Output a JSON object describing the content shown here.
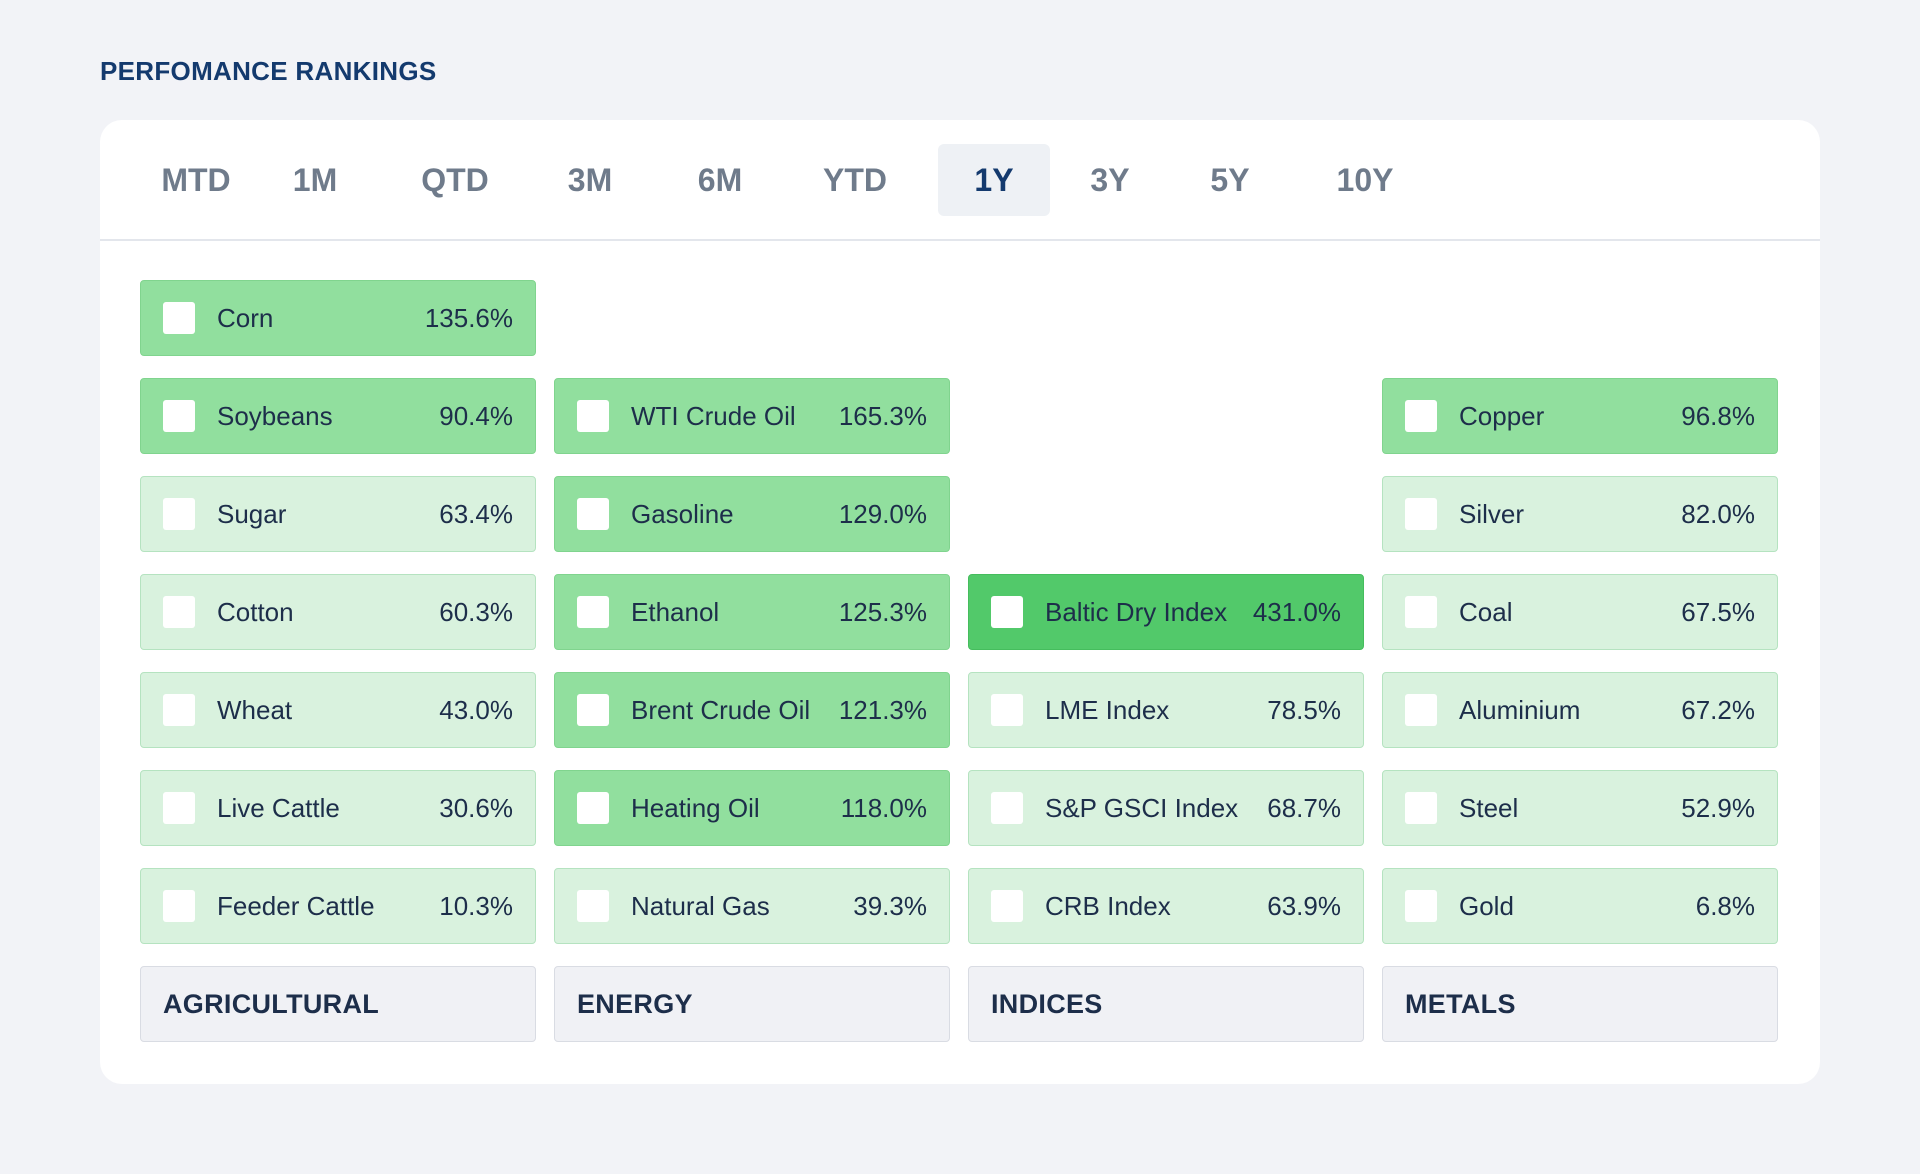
{
  "page_title": "PERFOMANCE RANKINGS",
  "tabs": [
    {
      "label": "MTD",
      "active": false
    },
    {
      "label": "1M",
      "active": false
    },
    {
      "label": "QTD",
      "active": false
    },
    {
      "label": "3M",
      "active": false
    },
    {
      "label": "6M",
      "active": false
    },
    {
      "label": "YTD",
      "active": false
    },
    {
      "label": "1Y",
      "active": true
    },
    {
      "label": "3Y",
      "active": false
    },
    {
      "label": "5Y",
      "active": false
    },
    {
      "label": "10Y",
      "active": false
    }
  ],
  "columns": [
    {
      "category": "AGRICULTURAL",
      "items": [
        {
          "name": "Corn",
          "value": "135.6%"
        },
        {
          "name": "Soybeans",
          "value": "90.4%"
        },
        {
          "name": "Sugar",
          "value": "63.4%"
        },
        {
          "name": "Cotton",
          "value": "60.3%"
        },
        {
          "name": "Wheat",
          "value": "43.0%"
        },
        {
          "name": "Live Cattle",
          "value": "30.6%"
        },
        {
          "name": "Feeder Cattle",
          "value": "10.3%"
        }
      ]
    },
    {
      "category": "ENERGY",
      "items": [
        {
          "name": "WTI Crude Oil",
          "value": "165.3%"
        },
        {
          "name": "Gasoline",
          "value": "129.0%"
        },
        {
          "name": "Ethanol",
          "value": "125.3%"
        },
        {
          "name": "Brent Crude Oil",
          "value": "121.3%"
        },
        {
          "name": "Heating Oil",
          "value": "118.0%"
        },
        {
          "name": "Natural Gas",
          "value": "39.3%"
        }
      ]
    },
    {
      "category": "INDICES",
      "items": [
        {
          "name": "Baltic Dry Index",
          "value": "431.0%"
        },
        {
          "name": "LME Index",
          "value": "78.5%"
        },
        {
          "name": "S&P GSCI Index",
          "value": "68.7%"
        },
        {
          "name": "CRB Index",
          "value": "63.9%"
        }
      ]
    },
    {
      "category": "METALS",
      "items": [
        {
          "name": "Copper",
          "value": "96.8%"
        },
        {
          "name": "Silver",
          "value": "82.0%"
        },
        {
          "name": "Coal",
          "value": "67.5%"
        },
        {
          "name": "Aluminium",
          "value": "67.2%"
        },
        {
          "name": "Steel",
          "value": "52.9%"
        },
        {
          "name": "Gold",
          "value": "6.8%"
        }
      ]
    }
  ],
  "colors": {
    "title": "#143a6e",
    "tile_low": "#d9f2de",
    "tile_mid": "#91df9e",
    "tile_high": "#52c96a"
  }
}
